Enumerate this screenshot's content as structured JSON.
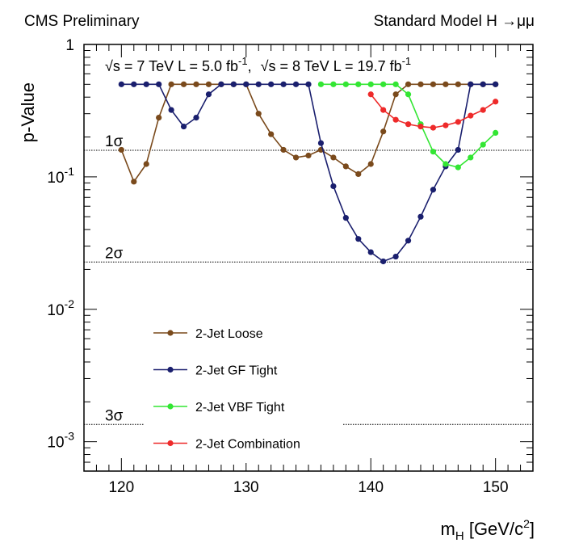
{
  "chart_data": {
    "type": "line",
    "header_left": "CMS Preliminary",
    "header_right": "Standard Model H →μμ",
    "energy_7tev": "√s = 7 TeV L = 5.0 fb",
    "energy_8tev": "√s = 8 TeV L = 19.7 fb",
    "energy_sup": "-1",
    "energy_sep": ",",
    "xlabel_main": "m",
    "xlabel_sub": "H",
    "xlabel_unit": " [GeV/c",
    "xlabel_sup": "2",
    "xlabel_end": "]",
    "ylabel": "p-Value",
    "xlim": [
      117,
      153
    ],
    "ylim": [
      0.0006,
      1
    ],
    "y_scale": "log",
    "x_ticks": [
      120,
      130,
      140,
      150
    ],
    "y_ticks": [
      {
        "value": 1,
        "base": "1",
        "exp": ""
      },
      {
        "value": 0.1,
        "base": "10",
        "exp": "-1"
      },
      {
        "value": 0.01,
        "base": "10",
        "exp": "-2"
      },
      {
        "value": 0.001,
        "base": "10",
        "exp": "-3"
      }
    ],
    "sigma_lines": [
      {
        "label": "1σ",
        "value": 0.1587
      },
      {
        "label": "2σ",
        "value": 0.02275
      },
      {
        "label": "3σ",
        "value": 0.00135
      }
    ],
    "legend_position": "bottom-left",
    "series": [
      {
        "name": "2-Jet Loose",
        "color": "#7a4a1c",
        "x": [
          120,
          121,
          122,
          123,
          124,
          125,
          126,
          127,
          128,
          129,
          130,
          131,
          132,
          133,
          134,
          135,
          136,
          137,
          138,
          139,
          140,
          141,
          142,
          143,
          144,
          145,
          146,
          147,
          148,
          149,
          150
        ],
        "y": [
          0.16,
          0.092,
          0.125,
          0.28,
          0.5,
          0.5,
          0.5,
          0.5,
          0.5,
          0.5,
          0.5,
          0.3,
          0.21,
          0.16,
          0.14,
          0.145,
          0.16,
          0.14,
          0.12,
          0.105,
          0.125,
          0.22,
          0.42,
          0.5,
          0.5,
          0.5,
          0.5,
          0.5,
          0.5,
          0.5,
          0.5
        ]
      },
      {
        "name": "2-Jet GF Tight",
        "color": "#1a1f6e",
        "x": [
          120,
          121,
          122,
          123,
          124,
          125,
          126,
          127,
          128,
          129,
          130,
          131,
          132,
          133,
          134,
          135,
          136,
          137,
          138,
          139,
          140,
          141,
          142,
          143,
          144,
          145,
          146,
          147,
          148,
          149,
          150
        ],
        "y": [
          0.5,
          0.5,
          0.5,
          0.5,
          0.32,
          0.24,
          0.28,
          0.42,
          0.5,
          0.5,
          0.5,
          0.5,
          0.5,
          0.5,
          0.5,
          0.5,
          0.18,
          0.085,
          0.049,
          0.034,
          0.027,
          0.023,
          0.025,
          0.033,
          0.05,
          0.08,
          0.12,
          0.16,
          0.5,
          0.5,
          0.5
        ]
      },
      {
        "name": "2-Jet VBF Tight",
        "color": "#33e633",
        "x": [
          136,
          137,
          138,
          139,
          140,
          141,
          142,
          143,
          144,
          145,
          146,
          147,
          148,
          149,
          150
        ],
        "y": [
          0.5,
          0.5,
          0.5,
          0.5,
          0.5,
          0.5,
          0.5,
          0.42,
          0.25,
          0.155,
          0.125,
          0.118,
          0.14,
          0.175,
          0.215
        ]
      },
      {
        "name": "2-Jet Combination",
        "color": "#ee2a2a",
        "x": [
          140,
          141,
          142,
          143,
          144,
          145,
          146,
          147,
          148,
          149,
          150
        ],
        "y": [
          0.42,
          0.32,
          0.27,
          0.25,
          0.24,
          0.235,
          0.245,
          0.26,
          0.29,
          0.32,
          0.37
        ]
      }
    ]
  }
}
